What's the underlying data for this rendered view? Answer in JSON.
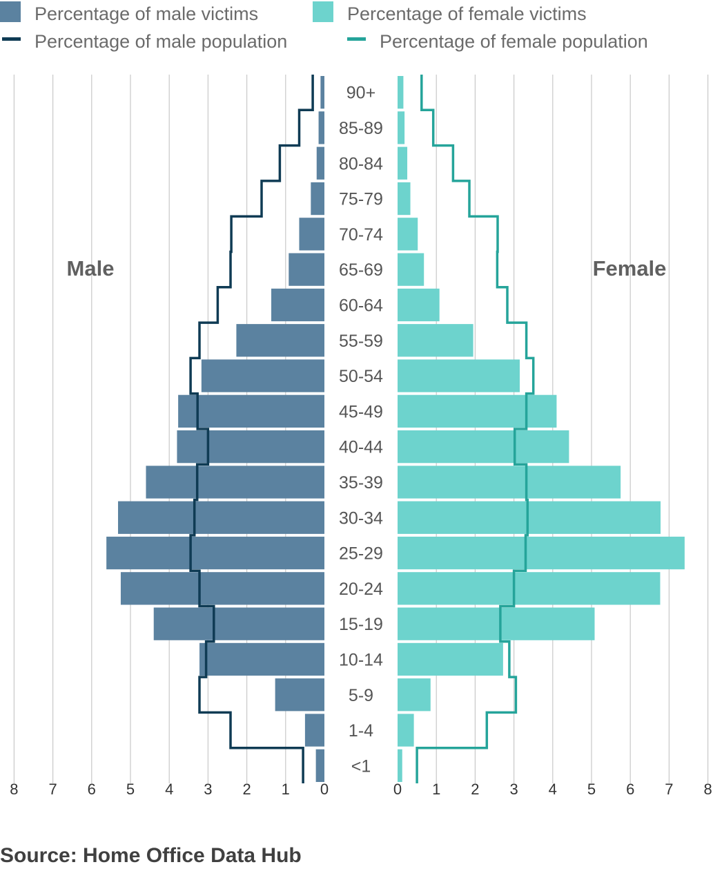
{
  "chart_data": {
    "type": "bar",
    "orientation": "horizontal-population-pyramid",
    "categories": [
      "90+",
      "85-89",
      "80-84",
      "75-79",
      "70-74",
      "65-69",
      "60-64",
      "55-59",
      "50-54",
      "45-49",
      "40-44",
      "35-39",
      "30-34",
      "25-29",
      "20-24",
      "15-19",
      "10-14",
      "5-9",
      "1-4",
      "<1"
    ],
    "side_labels": {
      "left": "Male",
      "right": "Female"
    },
    "xlim": [
      0,
      8
    ],
    "x_ticks": [
      "8",
      "7",
      "6",
      "5",
      "4",
      "3",
      "2",
      "1",
      "0"
    ],
    "x_ticks_right": [
      "0",
      "1",
      "2",
      "3",
      "4",
      "5",
      "6",
      "7",
      "8"
    ],
    "grid": true,
    "legend_position": "top",
    "series": [
      {
        "name": "Percentage of male victims",
        "kind": "bar",
        "side": "left",
        "color": "#5b82a0",
        "values": [
          0.1,
          0.15,
          0.2,
          0.35,
          0.65,
          0.92,
          1.37,
          2.27,
          3.17,
          3.77,
          3.8,
          4.6,
          5.32,
          5.62,
          5.25,
          4.4,
          3.22,
          1.27,
          0.5,
          0.22
        ]
      },
      {
        "name": "Percentage of female victims",
        "kind": "bar",
        "side": "right",
        "color": "#6dd3cd",
        "values": [
          0.15,
          0.18,
          0.25,
          0.33,
          0.52,
          0.68,
          1.08,
          1.95,
          3.15,
          4.1,
          4.42,
          5.75,
          6.78,
          7.4,
          6.77,
          5.08,
          2.72,
          0.85,
          0.42,
          0.12
        ]
      },
      {
        "name": "Percentage of male population",
        "kind": "step-line",
        "side": "left",
        "color": "#0f3b54",
        "values": [
          0.3,
          0.65,
          1.15,
          1.62,
          2.4,
          2.42,
          2.75,
          3.22,
          3.45,
          3.27,
          3.0,
          3.28,
          3.35,
          3.45,
          3.22,
          2.85,
          3.05,
          3.22,
          2.42,
          0.55
        ]
      },
      {
        "name": "Percentage of female population",
        "kind": "step-line",
        "side": "right",
        "color": "#25a49a",
        "values": [
          0.62,
          0.92,
          1.43,
          1.85,
          2.58,
          2.57,
          2.83,
          3.32,
          3.5,
          3.32,
          3.02,
          3.32,
          3.35,
          3.3,
          3.0,
          2.65,
          2.88,
          3.05,
          2.3,
          0.5
        ]
      }
    ]
  },
  "source_text": "Source: Home Office Data Hub"
}
